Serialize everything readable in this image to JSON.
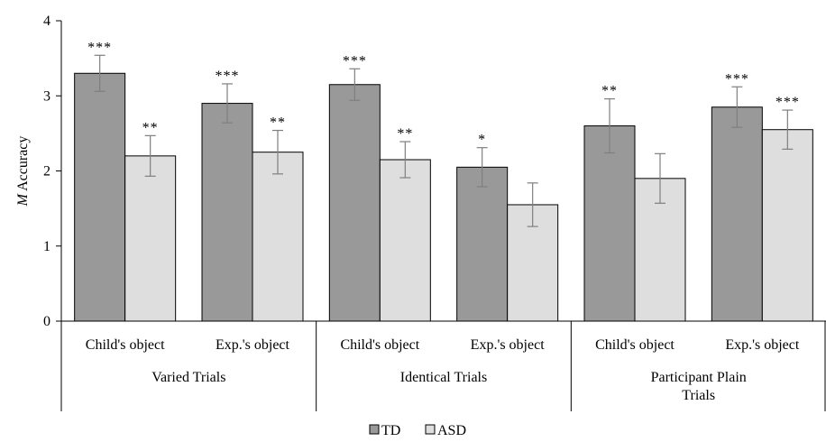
{
  "chart_data": {
    "type": "bar",
    "ylabel_italic": "M",
    "ylabel_rest": " Accuracy",
    "ylim": [
      0,
      4
    ],
    "yticks": [
      0,
      1,
      2,
      3,
      4
    ],
    "groups": [
      {
        "label_lines": [
          "Varied Trials"
        ],
        "categories": [
          "Child's object",
          "Exp.'s object"
        ]
      },
      {
        "label_lines": [
          "Identical Trials"
        ],
        "categories": [
          "Child's object",
          "Exp.'s object"
        ]
      },
      {
        "label_lines": [
          "Participant Plain",
          "Trials"
        ],
        "categories": [
          "Child's object",
          "Exp.'s object"
        ]
      }
    ],
    "series": [
      {
        "name": "TD",
        "color": "#999999",
        "values": [
          3.3,
          2.9,
          3.15,
          2.05,
          2.6,
          2.85
        ],
        "errors": [
          0.24,
          0.26,
          0.21,
          0.26,
          0.36,
          0.27
        ],
        "significance": [
          "***",
          "***",
          "***",
          "*",
          "**",
          "***"
        ]
      },
      {
        "name": "ASD",
        "color": "#dedede",
        "values": [
          2.2,
          2.25,
          2.15,
          1.55,
          1.9,
          2.55
        ],
        "errors": [
          0.27,
          0.29,
          0.24,
          0.29,
          0.33,
          0.26
        ],
        "significance": [
          "**",
          "**",
          "**",
          "",
          "",
          "***"
        ]
      }
    ],
    "legend_position": "bottom-center",
    "grid": false
  }
}
